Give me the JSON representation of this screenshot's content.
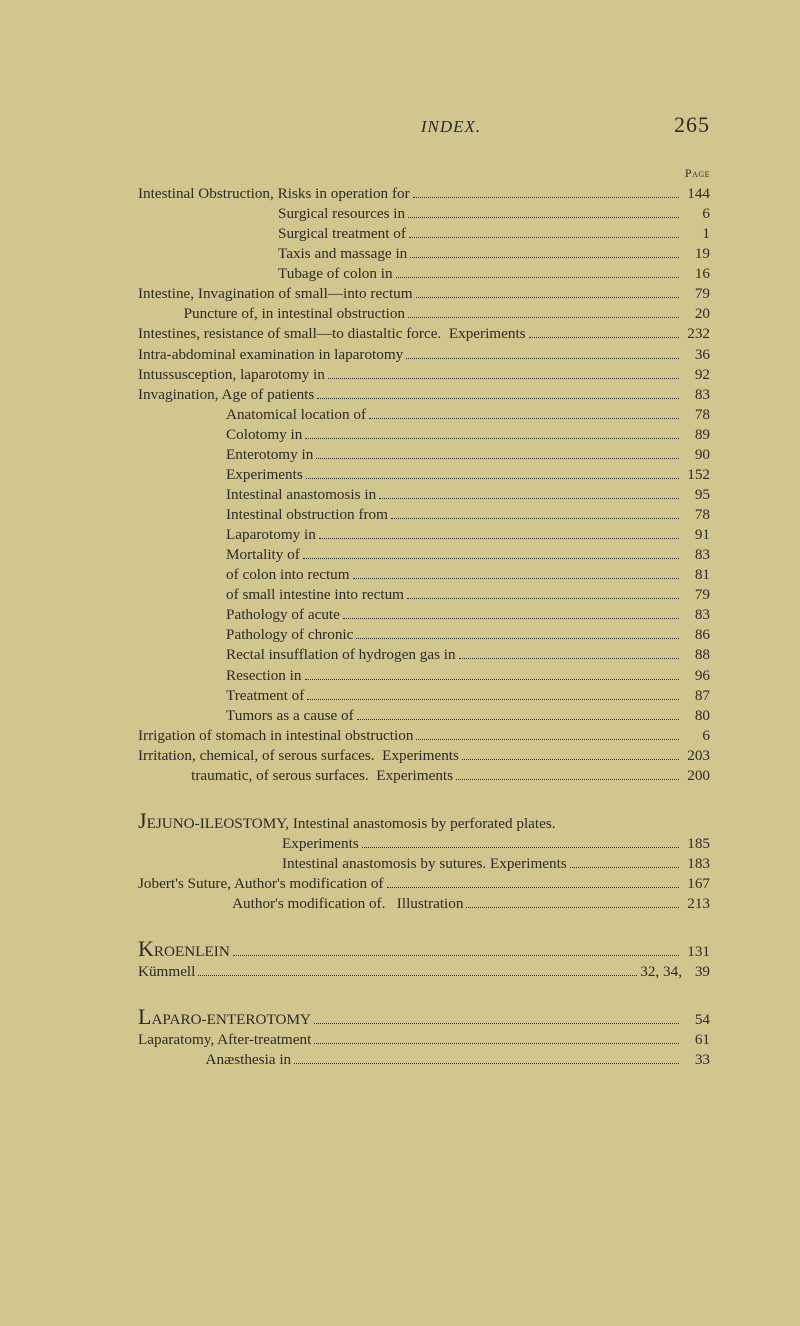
{
  "header": {
    "title": "INDEX.",
    "pagenum": "265",
    "page_label": "Page"
  },
  "entries": [
    {
      "indent": "ind0",
      "label": "Intestinal Obstruction, Risks in operation for",
      "page": "144"
    },
    {
      "indent": "ind1",
      "label": "Surgical resources in",
      "page": "6"
    },
    {
      "indent": "ind1",
      "label": "Surgical treatment of",
      "page": "1"
    },
    {
      "indent": "ind1",
      "label": "Taxis and massage in",
      "page": "19"
    },
    {
      "indent": "ind1",
      "label": "Tubage of colon in",
      "page": "16"
    },
    {
      "indent": "ind0",
      "label": "Intestine, Invagination of small—into rectum",
      "page": "79"
    },
    {
      "indent": "ind0",
      "label": "            Puncture of, in intestinal obstruction",
      "page": "20"
    },
    {
      "indent": "ind0",
      "label": "Intestines, resistance of small—to diastaltic force.  Experiments",
      "page": "232"
    },
    {
      "indent": "ind0",
      "label": "Intra-abdominal examination in laparotomy",
      "page": "36"
    },
    {
      "indent": "ind0",
      "label": "Intussusception, laparotomy in",
      "page": "92"
    },
    {
      "indent": "ind0",
      "label": "Invagination, Age of patients",
      "page": "83"
    },
    {
      "indent": "ind2",
      "label": "Anatomical location of",
      "page": "78"
    },
    {
      "indent": "ind2",
      "label": "Colotomy in",
      "page": "89"
    },
    {
      "indent": "ind2",
      "label": "Enterotomy in",
      "page": "90"
    },
    {
      "indent": "ind2",
      "label": "Experiments",
      "page": "152"
    },
    {
      "indent": "ind2",
      "label": "Intestinal anastomosis in",
      "page": "95"
    },
    {
      "indent": "ind2",
      "label": "Intestinal obstruction from",
      "page": "78"
    },
    {
      "indent": "ind2",
      "label": "Laparotomy in",
      "page": "91"
    },
    {
      "indent": "ind2",
      "label": "Mortality of",
      "page": "83"
    },
    {
      "indent": "ind2",
      "label": "of colon into rectum",
      "page": "81"
    },
    {
      "indent": "ind2",
      "label": "of small intestine into rectum",
      "page": "79"
    },
    {
      "indent": "ind2",
      "label": "Pathology of acute",
      "page": "83"
    },
    {
      "indent": "ind2",
      "label": "Pathology of chronic",
      "page": "86"
    },
    {
      "indent": "ind2",
      "label": "Rectal insufflation of hydrogen gas in",
      "page": "88"
    },
    {
      "indent": "ind2",
      "label": "Resection in",
      "page": "96"
    },
    {
      "indent": "ind2",
      "label": "Treatment of",
      "page": "87"
    },
    {
      "indent": "ind2",
      "label": "Tumors as a cause of",
      "page": "80"
    },
    {
      "indent": "ind0",
      "label": "Irrigation of stomach in intestinal obstruction",
      "page": "6"
    },
    {
      "indent": "ind0",
      "label": "Irritation, chemical, of serous surfaces.  Experiments",
      "page": "203"
    },
    {
      "indent": "ind0",
      "label": "              traumatic, of serous surfaces.  Experiments",
      "page": "200"
    }
  ],
  "section_j": {
    "entries": [
      {
        "indent": "ind0",
        "drop": "J",
        "label": "EJUNO-ILEOSTOMY, Intestinal anastomosis by perforated plates.",
        "page": ""
      },
      {
        "indent": "ind3",
        "label": "Experiments",
        "page": "185"
      },
      {
        "indent": "ind3",
        "label": "Intestinal anastomosis by sutures. Experiments",
        "page": "183"
      },
      {
        "indent": "ind0",
        "label": "Jobert's Suture, Author's modification of",
        "page": "167"
      },
      {
        "indent": "ind0",
        "label": "                         Author's modification of.   Illustration",
        "page": "213"
      }
    ]
  },
  "section_k": {
    "entries": [
      {
        "indent": "ind0",
        "drop": "K",
        "label": "ROENLEIN",
        "page": "131"
      },
      {
        "indent": "ind0",
        "label": "Kümmell",
        "pagepre": "32, 34,",
        "page": "39"
      }
    ]
  },
  "section_l": {
    "entries": [
      {
        "indent": "ind0",
        "drop": "L",
        "label": "APARO-ENTEROTOMY",
        "page": "54"
      },
      {
        "indent": "ind0",
        "label": "Laparatomy, After-treatment",
        "page": "61"
      },
      {
        "indent": "ind0",
        "label": "                  Anæsthesia in",
        "page": "33"
      }
    ]
  }
}
